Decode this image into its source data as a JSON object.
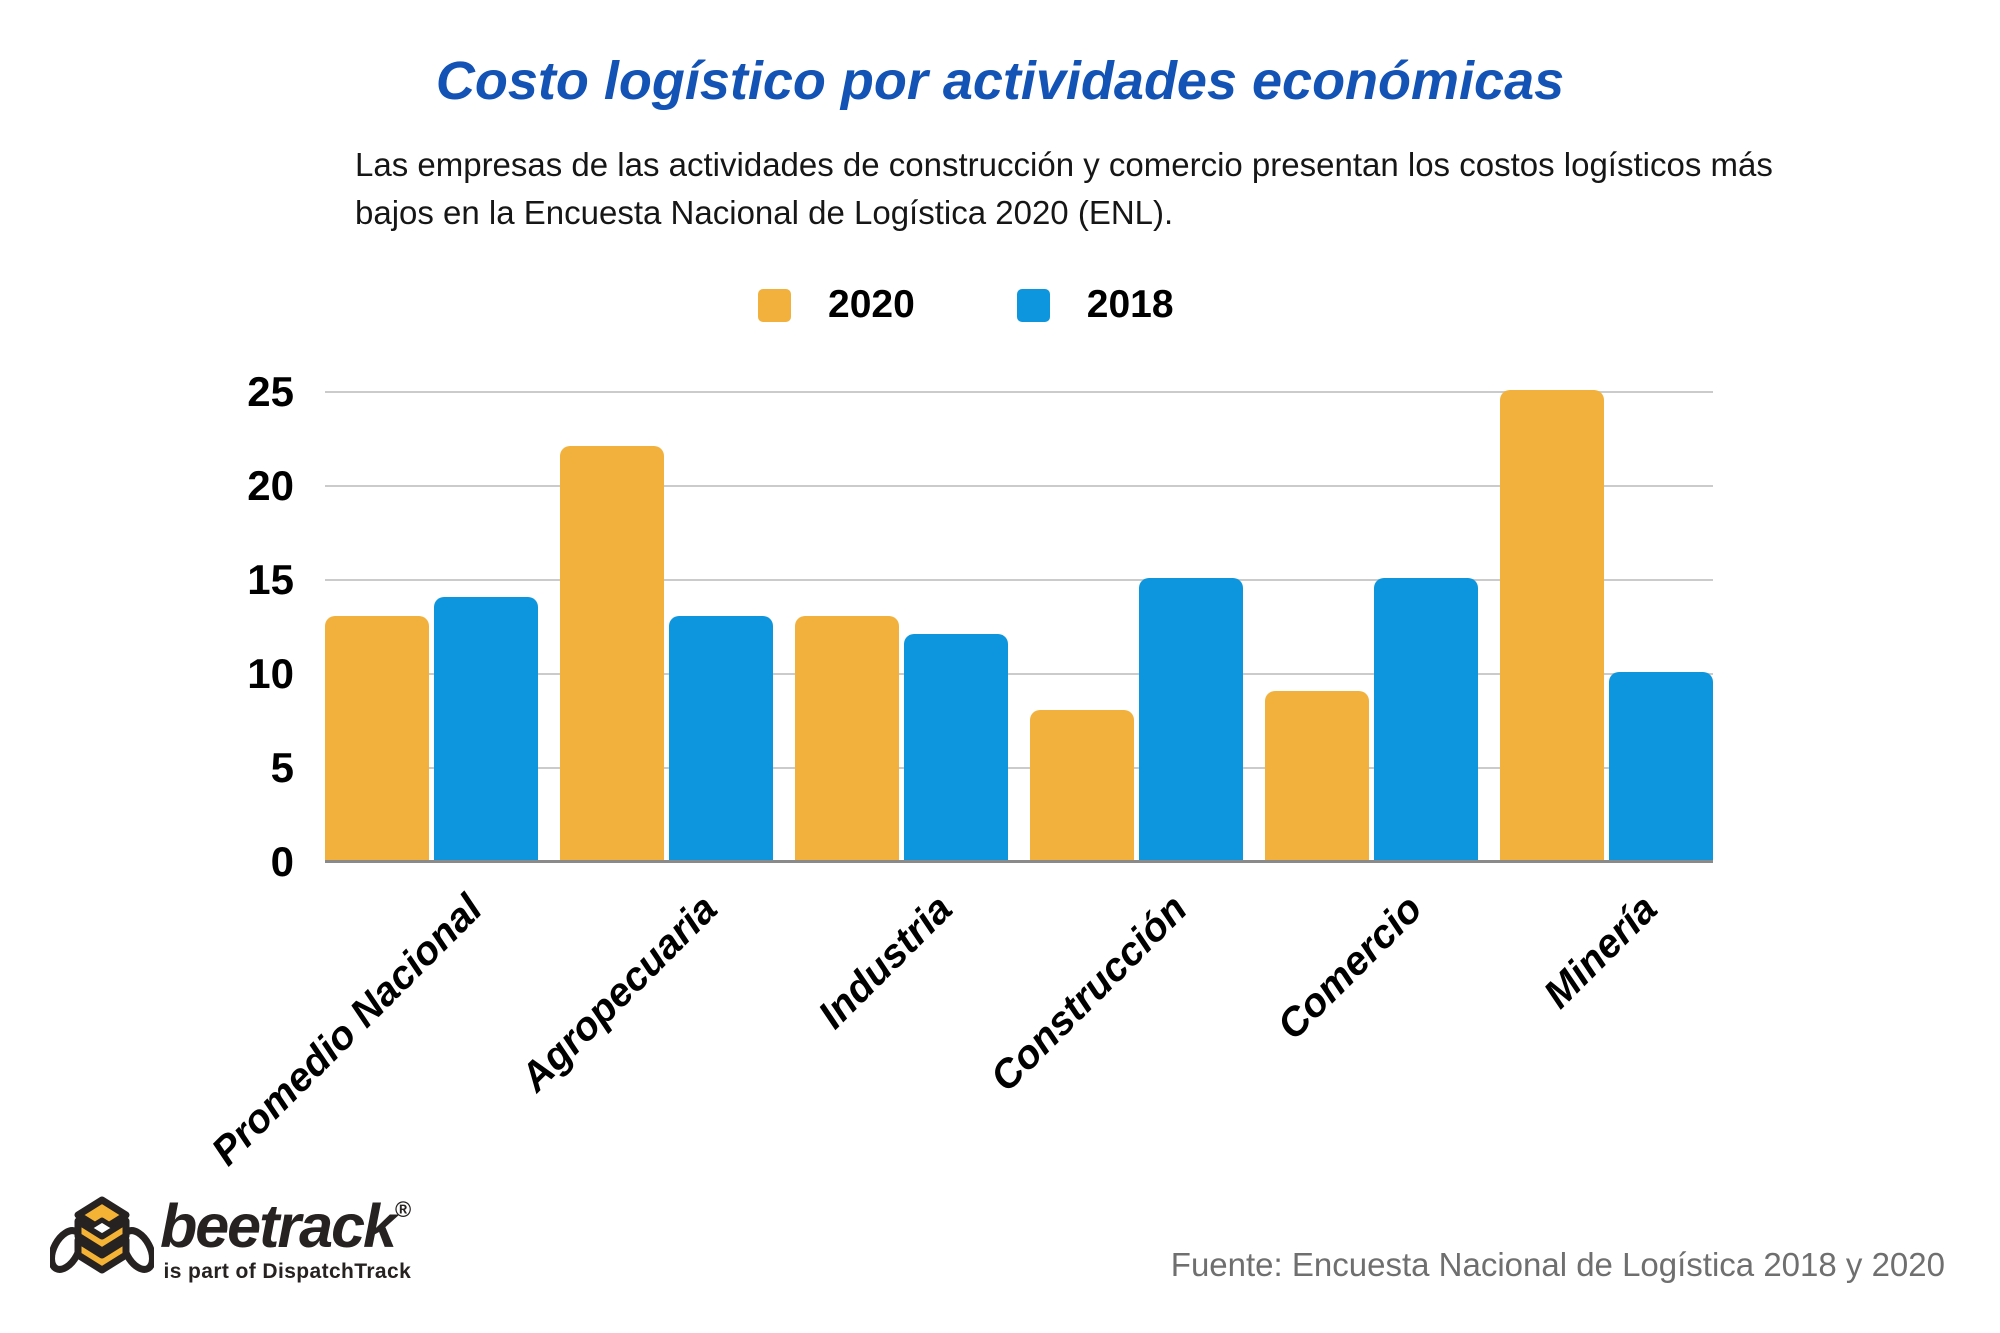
{
  "page": {
    "title": "Costo logístico por actividades económicas",
    "subtitle": "Las empresas de las actividades de construcción y comercio presentan los costos logísticos más bajos en la Encuesta Nacional de Logística 2020 (ENL)."
  },
  "chart_data": {
    "type": "bar",
    "categories": [
      "Promedio Nacional",
      "Agropecuaria",
      "Industria",
      "Construcción",
      "Comercio",
      "Minería"
    ],
    "series": [
      {
        "name": "2020",
        "color": "#F2B13C",
        "values": [
          13,
          22,
          13,
          8,
          9,
          25
        ]
      },
      {
        "name": "2018",
        "color": "#0D96DD",
        "values": [
          14,
          13,
          12,
          15,
          15,
          10
        ]
      }
    ],
    "ylim": [
      0,
      25
    ],
    "yticks": [
      0,
      5,
      10,
      15,
      20,
      25
    ],
    "grid": true,
    "legend_position": "top-center",
    "xlabel": "",
    "ylabel": ""
  },
  "footer": {
    "brand": "beetrack",
    "registered": "®",
    "tagline": "is part of DispatchTrack",
    "source": "Fuente: Encuesta Nacional de Logística 2018 y 2020"
  },
  "colors": {
    "title": "#1353B5",
    "grid": "#CBCBCB",
    "axis_line": "#8A8A8A",
    "source_text": "#6F6F6F",
    "logo_dark": "#262221",
    "logo_yellow": "#F5B335"
  }
}
